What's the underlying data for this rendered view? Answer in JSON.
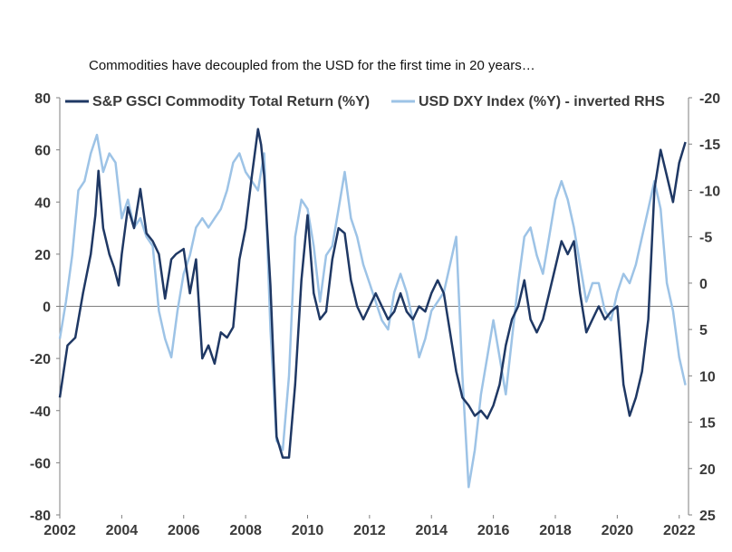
{
  "subtitle": "Commodities have decoupled from the USD for the first time in 20 years…",
  "chart_data": {
    "type": "line",
    "title": "Commodities have decoupled from the USD for the first time in 20 years…",
    "xlabel": "",
    "ylabel": "",
    "xlim": [
      2002,
      2022.3
    ],
    "ylim_left": [
      -80,
      80
    ],
    "ylim_right_inverted": [
      -20,
      25
    ],
    "x_ticks": [
      "2002",
      "2004",
      "2006",
      "2008",
      "2010",
      "2012",
      "2014",
      "2016",
      "2018",
      "2020",
      "2022"
    ],
    "y_ticks_left": [
      "80",
      "60",
      "40",
      "20",
      "0",
      "-20",
      "-40",
      "-60",
      "-80"
    ],
    "y_ticks_right": [
      "-20",
      "-15",
      "-10",
      "-5",
      "0",
      "5",
      "10",
      "15",
      "20",
      "25"
    ],
    "grid": false,
    "legend_position": "top",
    "series": [
      {
        "name": "S&P GSCI Commodity Total Return (%Y)",
        "axis": "left",
        "color": "#1f3864",
        "x": [
          2002.0,
          2002.25,
          2002.5,
          2002.75,
          2003.0,
          2003.15,
          2003.25,
          2003.4,
          2003.6,
          2003.75,
          2003.9,
          2004.0,
          2004.2,
          2004.4,
          2004.6,
          2004.8,
          2005.0,
          2005.2,
          2005.4,
          2005.6,
          2005.75,
          2006.0,
          2006.2,
          2006.4,
          2006.6,
          2006.8,
          2007.0,
          2007.2,
          2007.4,
          2007.6,
          2007.8,
          2008.0,
          2008.2,
          2008.4,
          2008.5,
          2008.6,
          2008.8,
          2009.0,
          2009.2,
          2009.4,
          2009.6,
          2009.8,
          2010.0,
          2010.2,
          2010.4,
          2010.6,
          2010.8,
          2011.0,
          2011.2,
          2011.4,
          2011.6,
          2011.8,
          2012.0,
          2012.2,
          2012.4,
          2012.6,
          2012.8,
          2013.0,
          2013.2,
          2013.4,
          2013.6,
          2013.8,
          2014.0,
          2014.2,
          2014.4,
          2014.6,
          2014.8,
          2015.0,
          2015.2,
          2015.4,
          2015.6,
          2015.8,
          2016.0,
          2016.2,
          2016.4,
          2016.6,
          2016.8,
          2017.0,
          2017.2,
          2017.4,
          2017.6,
          2017.8,
          2018.0,
          2018.2,
          2018.4,
          2018.6,
          2018.8,
          2019.0,
          2019.2,
          2019.4,
          2019.6,
          2019.8,
          2020.0,
          2020.2,
          2020.4,
          2020.6,
          2020.8,
          2021.0,
          2021.2,
          2021.4,
          2021.6,
          2021.8,
          2022.0,
          2022.2
        ],
        "values": [
          -35,
          -15,
          -12,
          5,
          20,
          35,
          52,
          30,
          20,
          15,
          8,
          20,
          38,
          30,
          45,
          28,
          25,
          20,
          3,
          18,
          20,
          22,
          5,
          18,
          -20,
          -15,
          -22,
          -10,
          -12,
          -8,
          18,
          30,
          50,
          68,
          62,
          50,
          8,
          -50,
          -58,
          -58,
          -30,
          10,
          35,
          5,
          -5,
          -2,
          18,
          30,
          28,
          10,
          0,
          -5,
          0,
          5,
          0,
          -5,
          -2,
          5,
          -2,
          -5,
          0,
          -2,
          5,
          10,
          5,
          -10,
          -25,
          -35,
          -38,
          -42,
          -40,
          -43,
          -38,
          -30,
          -15,
          -5,
          0,
          10,
          -5,
          -10,
          -5,
          5,
          15,
          25,
          20,
          25,
          5,
          -10,
          -5,
          0,
          -5,
          -2,
          0,
          -30,
          -42,
          -35,
          -25,
          -5,
          45,
          60,
          50,
          40,
          55,
          63
        ]
      },
      {
        "name": "USD DXY Index (%Y) - inverted RHS",
        "axis": "right",
        "color": "#9dc3e6",
        "x": [
          2002.0,
          2002.2,
          2002.4,
          2002.6,
          2002.8,
          2003.0,
          2003.2,
          2003.4,
          2003.6,
          2003.8,
          2004.0,
          2004.2,
          2004.4,
          2004.6,
          2004.8,
          2005.0,
          2005.2,
          2005.4,
          2005.6,
          2005.8,
          2006.0,
          2006.2,
          2006.4,
          2006.6,
          2006.8,
          2007.0,
          2007.2,
          2007.4,
          2007.6,
          2007.8,
          2008.0,
          2008.2,
          2008.4,
          2008.6,
          2008.8,
          2009.0,
          2009.2,
          2009.4,
          2009.6,
          2009.8,
          2010.0,
          2010.2,
          2010.4,
          2010.6,
          2010.8,
          2011.0,
          2011.2,
          2011.4,
          2011.6,
          2011.8,
          2012.0,
          2012.2,
          2012.4,
          2012.6,
          2012.8,
          2013.0,
          2013.2,
          2013.4,
          2013.6,
          2013.8,
          2014.0,
          2014.2,
          2014.4,
          2014.6,
          2014.8,
          2015.0,
          2015.2,
          2015.4,
          2015.6,
          2015.8,
          2016.0,
          2016.2,
          2016.4,
          2016.6,
          2016.8,
          2017.0,
          2017.2,
          2017.4,
          2017.6,
          2017.8,
          2018.0,
          2018.2,
          2018.4,
          2018.6,
          2018.8,
          2019.0,
          2019.2,
          2019.4,
          2019.6,
          2019.8,
          2020.0,
          2020.2,
          2020.4,
          2020.6,
          2020.8,
          2021.0,
          2021.2,
          2021.4,
          2021.6,
          2021.8,
          2022.0,
          2022.2
        ],
        "values": [
          6,
          2,
          -3,
          -10,
          -11,
          -14,
          -16,
          -12,
          -14,
          -13,
          -7,
          -9,
          -6,
          -7,
          -5,
          -4,
          3,
          6,
          8,
          3,
          -1,
          -3,
          -6,
          -7,
          -6,
          -7,
          -8,
          -10,
          -13,
          -14,
          -12,
          -11,
          -10,
          -14,
          5,
          17,
          18,
          10,
          -5,
          -9,
          -8,
          -4,
          2,
          -3,
          -4,
          -8,
          -12,
          -7,
          -5,
          -2,
          0,
          2,
          4,
          5,
          1,
          -1,
          1,
          4,
          8,
          6,
          3,
          2,
          1,
          -2,
          -5,
          10,
          22,
          18,
          12,
          8,
          4,
          8,
          12,
          6,
          0,
          -5,
          -6,
          -3,
          -1,
          -5,
          -9,
          -11,
          -9,
          -6,
          -2,
          2,
          0,
          0,
          3,
          4,
          1,
          -1,
          0,
          -2,
          -5,
          -8,
          -11,
          -8,
          0,
          3,
          8,
          11
        ]
      }
    ]
  }
}
